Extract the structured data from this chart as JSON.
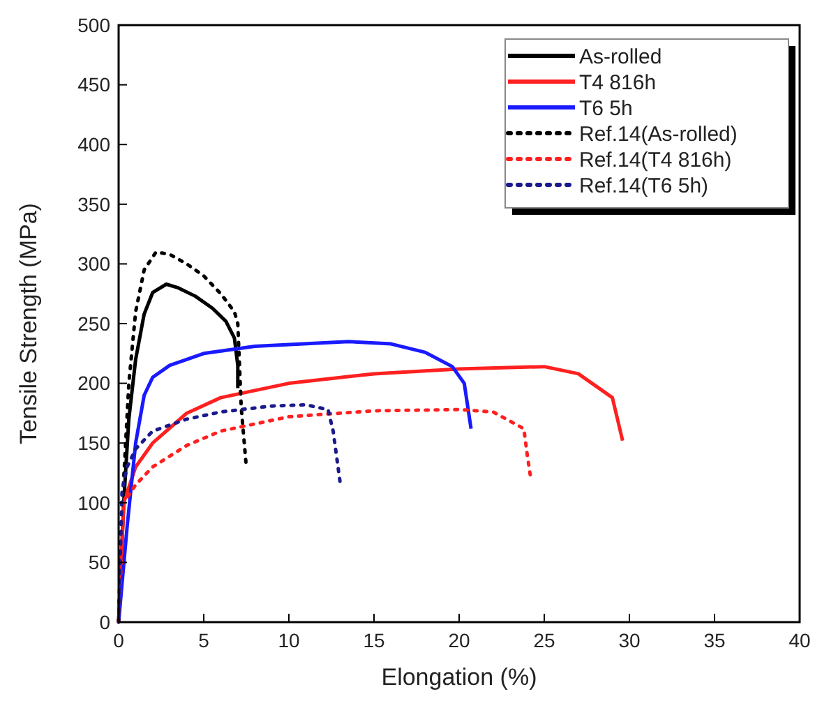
{
  "chart_data": {
    "type": "line",
    "xlabel": "Elongation (%)",
    "ylabel": "Tensile Strength (MPa)",
    "xlim": [
      0,
      40
    ],
    "ylim": [
      0,
      500
    ],
    "xticks": [
      0,
      5,
      10,
      15,
      20,
      25,
      30,
      35,
      40
    ],
    "yticks": [
      0,
      50,
      100,
      150,
      200,
      250,
      300,
      350,
      400,
      450,
      500
    ],
    "grid": false,
    "legend": "top right",
    "series": [
      {
        "name": "As-rolled",
        "color": "#000000",
        "line_style": "solid",
        "x": [
          0,
          0.3,
          0.6,
          1,
          1.5,
          2,
          2.8,
          3.5,
          4.5,
          5.5,
          6.3,
          6.8,
          7,
          7
        ],
        "values": [
          0,
          100,
          170,
          220,
          258,
          276,
          283,
          280,
          273,
          263,
          252,
          238,
          215,
          196
        ]
      },
      {
        "name": "T4 816h",
        "color": "#ff2020",
        "line_style": "solid",
        "x": [
          0,
          0.3,
          1,
          2,
          4,
          6,
          10,
          15,
          20,
          25,
          27,
          29,
          29.6
        ],
        "values": [
          0,
          100,
          130,
          150,
          175,
          188,
          200,
          208,
          212,
          214,
          208,
          188,
          152
        ]
      },
      {
        "name": "T6 5h",
        "color": "#1a1aff",
        "line_style": "solid",
        "x": [
          0,
          0.5,
          1,
          1.5,
          2,
          3,
          5,
          8,
          13.5,
          16,
          18,
          19.6,
          20.3,
          20.7
        ],
        "values": [
          0,
          80,
          150,
          190,
          205,
          215,
          225,
          231,
          235,
          233,
          226,
          214,
          200,
          162
        ]
      },
      {
        "name": "Ref.14(As-rolled)",
        "color": "#000000",
        "line_style": "dotted",
        "x": [
          0,
          0.3,
          0.6,
          1,
          1.5,
          2.2,
          3,
          4,
          5,
          6,
          6.8,
          7,
          7.2,
          7.5
        ],
        "values": [
          0,
          120,
          200,
          260,
          295,
          310,
          308,
          300,
          290,
          275,
          260,
          250,
          180,
          130
        ]
      },
      {
        "name": "Ref.14(T4 816h)",
        "color": "#ff2020",
        "line_style": "dotted",
        "x": [
          0,
          0.3,
          1,
          2,
          4,
          6,
          10,
          15,
          20,
          22,
          23.8,
          24,
          24.2
        ],
        "values": [
          0,
          100,
          115,
          130,
          148,
          160,
          172,
          177,
          178,
          176,
          162,
          140,
          121
        ]
      },
      {
        "name": "Ref.14(T6 5h)",
        "color": "#1a1a8c",
        "line_style": "dotted",
        "x": [
          0,
          0.2,
          0.5,
          1,
          2,
          4,
          6,
          9,
          11,
          12.3,
          12.6,
          13
        ],
        "values": [
          0,
          110,
          130,
          145,
          160,
          170,
          176,
          181,
          182,
          178,
          160,
          118
        ]
      }
    ]
  }
}
